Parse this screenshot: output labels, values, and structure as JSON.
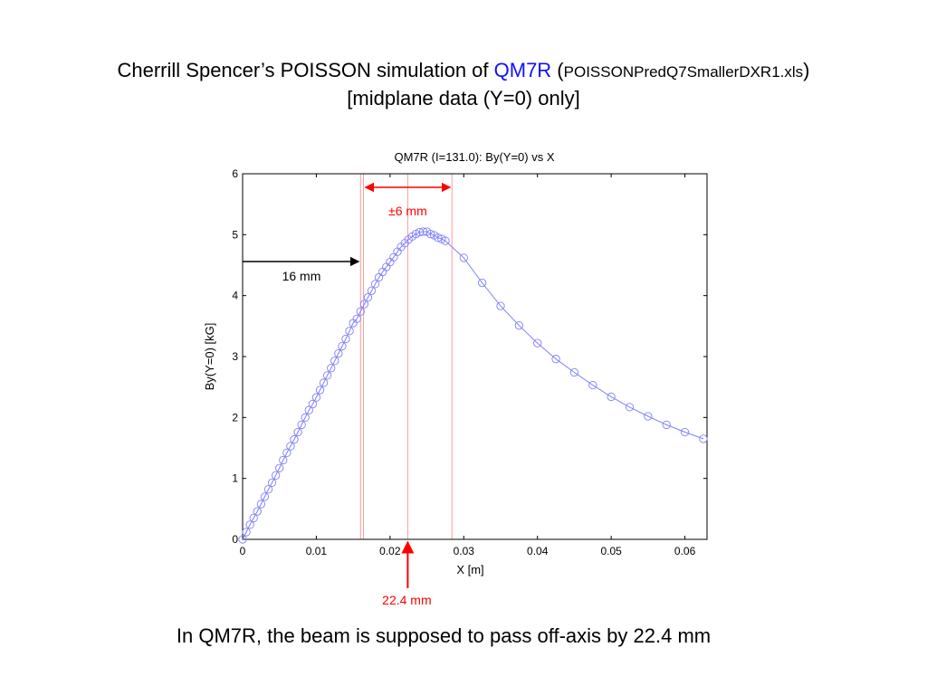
{
  "slide": {
    "title_prefix": "Cherrill Spencer’s POISSON simulation of ",
    "title_magnet": "QM7R",
    "title_paren_open": " (",
    "title_file": "POISSONPredQ7SmallerDXR1.xls",
    "title_paren_close": ")",
    "subtitle": "[midplane data (Y=0) only]",
    "caption": "In QM7R, the beam is supposed to pass off-axis by 22.4 mm"
  },
  "colors": {
    "series": "#8080ff",
    "annotation": "#ff0000",
    "vline": "#ff9c9c",
    "axis": "#000000"
  },
  "annotations": {
    "pm6": "±6 mm",
    "mm16": "16 mm",
    "mm224": "22.4 mm"
  },
  "chart_data": {
    "type": "line",
    "title": "QM7R (I=131.0): By(Y=0) vs X",
    "xlabel": "X [m]",
    "ylabel": "By(Y=0) [kG]",
    "xlim": [
      0,
      0.063
    ],
    "ylim": [
      0,
      6
    ],
    "xticks": [
      0,
      0.01,
      0.02,
      0.03,
      0.04,
      0.05,
      0.06
    ],
    "xtick_labels": [
      "0",
      "0.01",
      "0.02",
      "0.03",
      "0.04",
      "0.05",
      "0.06"
    ],
    "yticks": [
      0,
      1,
      2,
      3,
      4,
      5,
      6
    ],
    "ytick_labels": [
      "0",
      "1",
      "2",
      "3",
      "4",
      "5",
      "6"
    ],
    "marker": "circle",
    "reference_lines_x": [
      0.016,
      0.0164,
      0.0224,
      0.0284
    ],
    "series": [
      {
        "x": [
          0,
          0.0005,
          0.001,
          0.0015,
          0.002,
          0.0025,
          0.003,
          0.0035,
          0.004,
          0.0045,
          0.005,
          0.0055,
          0.006,
          0.0065,
          0.007,
          0.0075,
          0.008,
          0.0085,
          0.009,
          0.0095,
          0.01,
          0.0105,
          0.011,
          0.0115,
          0.012,
          0.0125,
          0.013,
          0.0135,
          0.014,
          0.0145,
          0.015,
          0.0155,
          0.016,
          0.0165,
          0.017,
          0.0175,
          0.018,
          0.0185,
          0.019,
          0.0195,
          0.02,
          0.0205,
          0.021,
          0.0215,
          0.022,
          0.0225,
          0.023,
          0.0235,
          0.024,
          0.0245,
          0.025,
          0.0255,
          0.026,
          0.0265,
          0.027,
          0.0275,
          0.03,
          0.0325,
          0.035,
          0.0375,
          0.04,
          0.0425,
          0.045,
          0.0475,
          0.05,
          0.0525,
          0.055,
          0.0575,
          0.06,
          0.0625
        ],
        "y": [
          0.0,
          0.12,
          0.24,
          0.35,
          0.46,
          0.58,
          0.7,
          0.82,
          0.93,
          1.05,
          1.17,
          1.3,
          1.42,
          1.53,
          1.64,
          1.76,
          1.88,
          2.0,
          2.12,
          2.22,
          2.33,
          2.45,
          2.57,
          2.69,
          2.81,
          2.93,
          3.05,
          3.17,
          3.29,
          3.42,
          3.55,
          3.62,
          3.74,
          3.86,
          3.97,
          4.08,
          4.19,
          4.3,
          4.39,
          4.47,
          4.55,
          4.63,
          4.72,
          4.8,
          4.86,
          4.92,
          4.97,
          5.01,
          5.04,
          5.05,
          5.05,
          5.01,
          4.99,
          4.95,
          4.93,
          4.9,
          4.62,
          4.21,
          3.83,
          3.51,
          3.22,
          2.96,
          2.74,
          2.53,
          2.34,
          2.17,
          2.02,
          1.88,
          1.76,
          1.65
        ]
      }
    ]
  }
}
